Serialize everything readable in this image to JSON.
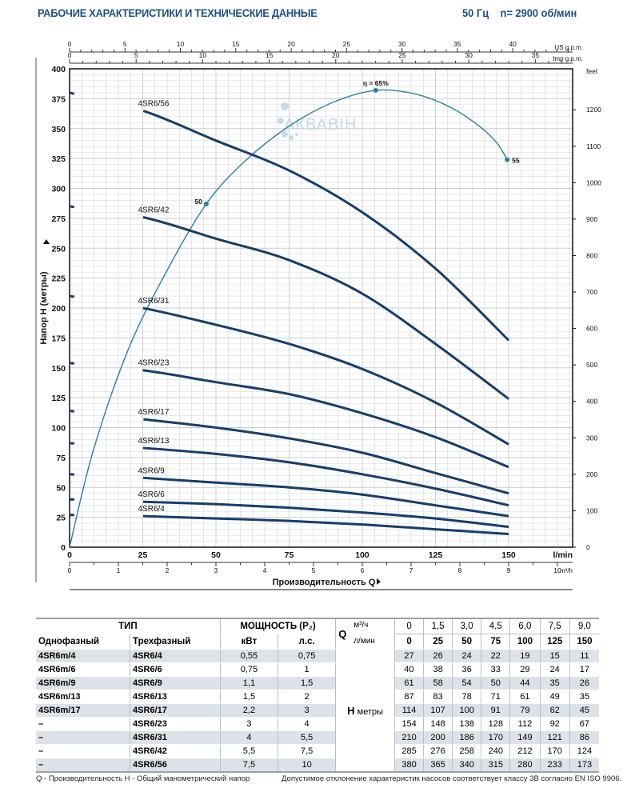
{
  "header": {
    "title": "РАБОЧИЕ ХАРАКТЕРИСТИКИ И ТЕХНИЧЕСКИЕ ДАННЫЕ",
    "freq": "50 Гц",
    "speed": "n= 2900 об/мин"
  },
  "watermark": "АКВАВІН",
  "chart_data": {
    "type": "line",
    "xlabel": "Производительность Q",
    "ylabel": "Напор H (метры)",
    "x_unit": "l/min",
    "x2_unit": "m³/h",
    "x_top1_unit": "US g.p.m.",
    "x_top2_unit": "Imp g.p.m.",
    "y2_unit": "feet",
    "xlim": [
      0,
      172
    ],
    "ylim": [
      0,
      400
    ],
    "x_ticks": [
      0,
      25,
      50,
      75,
      100,
      125,
      150
    ],
    "y_ticks": [
      0,
      25,
      50,
      75,
      100,
      125,
      150,
      175,
      200,
      225,
      250,
      275,
      300,
      325,
      350,
      375,
      400
    ],
    "y2_ticks": [
      0,
      100,
      200,
      300,
      400,
      500,
      600,
      700,
      800,
      900,
      1000,
      1100,
      1200
    ],
    "m3h_ticks": [
      0,
      1,
      2,
      3,
      4,
      5,
      6,
      7,
      8,
      9,
      10
    ],
    "usgpm_ticks": [
      0,
      5,
      10,
      15,
      20,
      25,
      30,
      35,
      40
    ],
    "impgpm_ticks": [
      0,
      5,
      10,
      15,
      20,
      25,
      30,
      35
    ],
    "grid": true,
    "x": [
      0,
      25,
      50,
      75,
      100,
      125,
      150
    ],
    "dashed_until": 25,
    "series": [
      {
        "name": "4SR6/56",
        "values": [
          380,
          365,
          340,
          315,
          280,
          233,
          173
        ]
      },
      {
        "name": "4SR6/42",
        "values": [
          285,
          276,
          258,
          240,
          212,
          170,
          124
        ]
      },
      {
        "name": "4SR6/31",
        "values": [
          210,
          200,
          186,
          170,
          149,
          121,
          86
        ]
      },
      {
        "name": "4SR6/23",
        "values": [
          154,
          148,
          138,
          128,
          112,
          92,
          67
        ]
      },
      {
        "name": "4SR6/17",
        "values": [
          114,
          107,
          100,
          91,
          79,
          62,
          45
        ]
      },
      {
        "name": "4SR6/13",
        "values": [
          87,
          83,
          78,
          71,
          61,
          49,
          35
        ]
      },
      {
        "name": "4SR6/9",
        "values": [
          61,
          58,
          54,
          50,
          44,
          35,
          26
        ]
      },
      {
        "name": "4SR6/6",
        "values": [
          40,
          38,
          36,
          33,
          29,
          24,
          17
        ]
      },
      {
        "name": "4SR6/4",
        "values": [
          27,
          26,
          24,
          22,
          19,
          15,
          11
        ]
      }
    ],
    "efficiency": {
      "points": [
        [
          0,
          0
        ],
        [
          8,
          80
        ],
        [
          20,
          165
        ],
        [
          33,
          230
        ],
        [
          46.7,
          287
        ],
        [
          60,
          323
        ],
        [
          75,
          352
        ],
        [
          90,
          372
        ],
        [
          104.6,
          382
        ],
        [
          118,
          379
        ],
        [
          130,
          368
        ],
        [
          140,
          352
        ],
        [
          146,
          338
        ],
        [
          149.5,
          324
        ]
      ],
      "markers": [
        {
          "x": 46.7,
          "y": 287,
          "label": "50"
        },
        {
          "x": 104.6,
          "y": 382,
          "label": "η = 65%"
        },
        {
          "x": 149.5,
          "y": 324,
          "label": "55"
        }
      ]
    },
    "colors": {
      "curve": "#163e6c",
      "efficiency": "#2a7fa6",
      "grid": "#c9ccd0"
    }
  },
  "table": {
    "h_type": "ТИП",
    "h_power": "МОЩНОСТЬ (P₂)",
    "h_single": "Однофазный",
    "h_three": "Трехфазный",
    "h_kw": "кВт",
    "h_hp": "л.с.",
    "q": "Q",
    "q_m3h": "м³/ч",
    "q_lmin": "л/мин",
    "h": "H",
    "h_unit": "метры",
    "m3h": [
      "0",
      "1,5",
      "3,0",
      "4,5",
      "6,0",
      "7,5",
      "9,0"
    ],
    "lmin": [
      "0",
      "25",
      "50",
      "75",
      "100",
      "125",
      "150"
    ],
    "rows": [
      {
        "single": "4SR6m/4",
        "three": "4SR6/4",
        "kw": "0,55",
        "hp": "0,75",
        "h": [
          "27",
          "26",
          "24",
          "22",
          "19",
          "15",
          "11"
        ]
      },
      {
        "single": "4SR6m/6",
        "three": "4SR6/6",
        "kw": "0,75",
        "hp": "1",
        "h": [
          "40",
          "38",
          "36",
          "33",
          "29",
          "24",
          "17"
        ]
      },
      {
        "single": "4SR6m/9",
        "three": "4SR6/9",
        "kw": "1,1",
        "hp": "1,5",
        "h": [
          "61",
          "58",
          "54",
          "50",
          "44",
          "35",
          "26"
        ]
      },
      {
        "single": "4SR6m/13",
        "three": "4SR6/13",
        "kw": "1,5",
        "hp": "2",
        "h": [
          "87",
          "83",
          "78",
          "71",
          "61",
          "49",
          "35"
        ]
      },
      {
        "single": "4SR6m/17",
        "three": "4SR6/17",
        "kw": "2,2",
        "hp": "3",
        "h": [
          "114",
          "107",
          "100",
          "91",
          "79",
          "62",
          "45"
        ]
      },
      {
        "single": "–",
        "three": "4SR6/23",
        "kw": "3",
        "hp": "4",
        "h": [
          "154",
          "148",
          "138",
          "128",
          "112",
          "92",
          "67"
        ]
      },
      {
        "single": "–",
        "three": "4SR6/31",
        "kw": "4",
        "hp": "5,5",
        "h": [
          "210",
          "200",
          "186",
          "170",
          "149",
          "121",
          "86"
        ]
      },
      {
        "single": "–",
        "three": "4SR6/42",
        "kw": "5,5",
        "hp": "7,5",
        "h": [
          "285",
          "276",
          "258",
          "240",
          "212",
          "170",
          "124"
        ]
      },
      {
        "single": "–",
        "three": "4SR6/56",
        "kw": "7,5",
        "hp": "10",
        "h": [
          "380",
          "365",
          "340",
          "315",
          "280",
          "233",
          "173"
        ]
      }
    ]
  },
  "footer": {
    "legend": "Q - Производительность   H - Общий манометрический напор",
    "note": "Допустимое отклонение характеристик насосов соответствует классу 3В согласно EN ISO 9906."
  }
}
